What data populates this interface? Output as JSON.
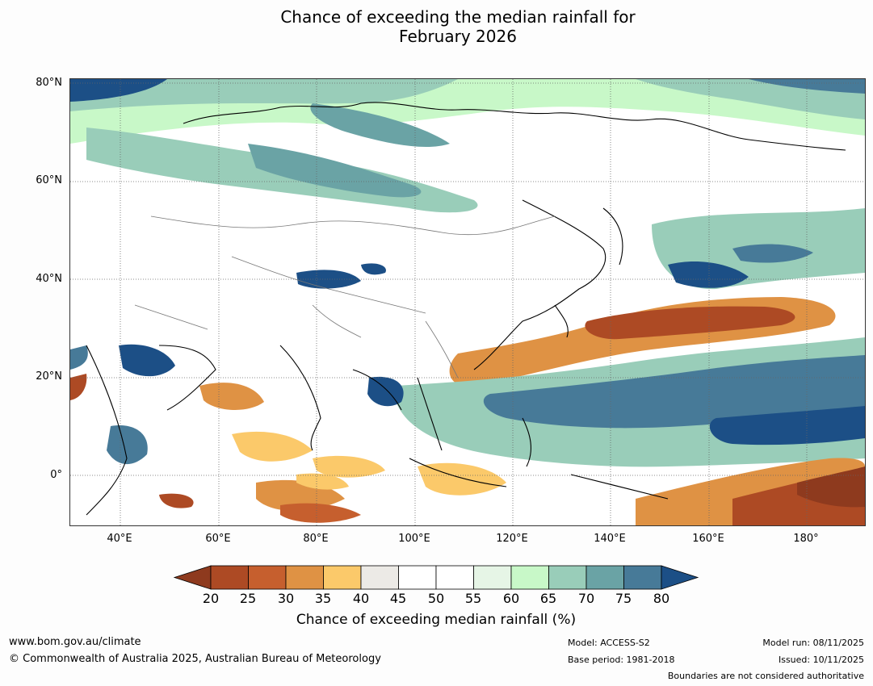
{
  "title_line1": "Chance of exceeding the median rainfall for",
  "title_line2": "February 2026",
  "map": {
    "lat_labels": [
      "80°N",
      "60°N",
      "40°N",
      "20°N",
      "0°"
    ],
    "lon_labels": [
      "40°E",
      "60°E",
      "80°E",
      "100°E",
      "120°E",
      "140°E",
      "160°E",
      "180°"
    ]
  },
  "colorbar": {
    "title": "Chance of exceeding median rainfall (%)",
    "ticks": [
      "20",
      "25",
      "30",
      "35",
      "40",
      "45",
      "50",
      "55",
      "60",
      "65",
      "70",
      "75",
      "80"
    ],
    "colors": [
      "#8e3a1e",
      "#ad4a24",
      "#c65f2e",
      "#df9244",
      "#fbc96a",
      "#eceae6",
      "#ffffff",
      "#ffffff",
      "#e6f5e6",
      "#c8f8c8",
      "#99cdb9",
      "#6aa3a5",
      "#477a98",
      "#1c4f86"
    ]
  },
  "footer": {
    "website": "www.bom.gov.au/climate",
    "copyright": "© Commonwealth of Australia 2025, Australian Bureau of Meteorology",
    "model": "Model: ACCESS-S2",
    "base_period": "Base period: 1981-2018",
    "model_run": "Model run: 08/11/2025",
    "issued": "Issued: 10/11/2025",
    "boundaries": "Boundaries are not considered authoritative"
  }
}
